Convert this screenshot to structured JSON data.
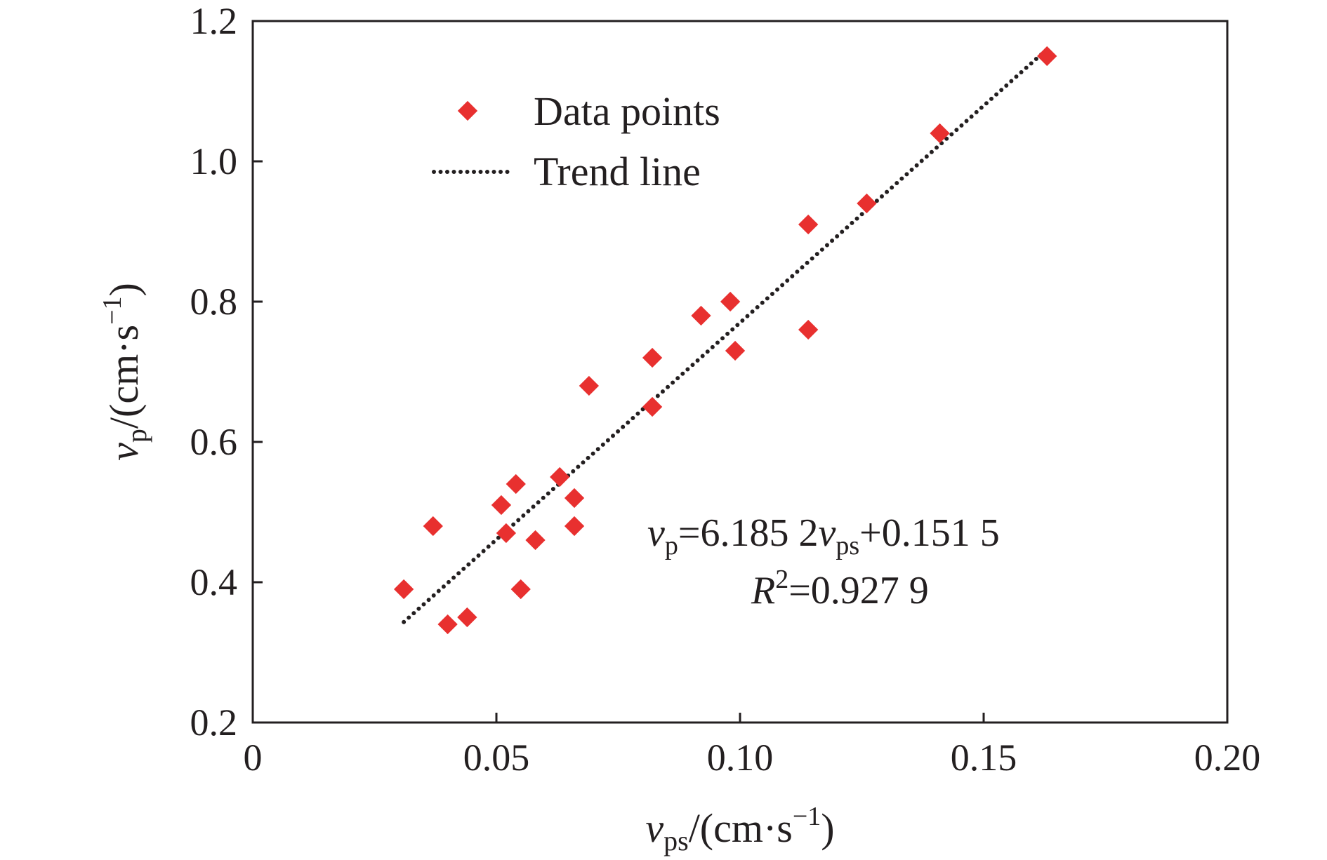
{
  "colors": {
    "marker": "#e8302f",
    "trend": "#231f20",
    "axis": "#231f20"
  },
  "chart_data": {
    "type": "scatter",
    "xlim": [
      0,
      0.2
    ],
    "ylim": [
      0.2,
      1.2
    ],
    "x_ticks": [
      "0",
      "0.05",
      "0.10",
      "0.15",
      "0.20"
    ],
    "y_ticks": [
      "0.2",
      "0.4",
      "0.6",
      "0.8",
      "1.0",
      "1.2"
    ],
    "xlabel": {
      "var": "v",
      "sub": "ps",
      "unit": "/(cm·s",
      "sup": "−1",
      "close": ")"
    },
    "ylabel": {
      "var": "v",
      "sub": "p",
      "unit": "/(cm·s",
      "sup": "−1",
      "close": ")"
    },
    "legend": {
      "placement": "top-left",
      "points_label": "Data points",
      "trend_label": "Trend line"
    },
    "series": [
      {
        "name": "Data points",
        "marker": "diamond",
        "points": [
          [
            0.031,
            0.39
          ],
          [
            0.037,
            0.48
          ],
          [
            0.04,
            0.34
          ],
          [
            0.044,
            0.35
          ],
          [
            0.051,
            0.51
          ],
          [
            0.052,
            0.47
          ],
          [
            0.054,
            0.54
          ],
          [
            0.055,
            0.39
          ],
          [
            0.058,
            0.46
          ],
          [
            0.063,
            0.55
          ],
          [
            0.066,
            0.48
          ],
          [
            0.066,
            0.52
          ],
          [
            0.069,
            0.68
          ],
          [
            0.082,
            0.72
          ],
          [
            0.082,
            0.65
          ],
          [
            0.092,
            0.78
          ],
          [
            0.098,
            0.8
          ],
          [
            0.099,
            0.73
          ],
          [
            0.114,
            0.91
          ],
          [
            0.114,
            0.76
          ],
          [
            0.126,
            0.94
          ],
          [
            0.141,
            1.04
          ],
          [
            0.163,
            1.15
          ]
        ]
      },
      {
        "name": "Trend line",
        "type": "line",
        "slope": 6.1852,
        "intercept": 0.1515,
        "x_range": [
          0.031,
          0.163
        ]
      }
    ],
    "annotation": {
      "eq_var": "v",
      "eq_sub": "p",
      "eq_mid": "=6.185 2",
      "eq_var2": "v",
      "eq_sub2": "ps",
      "eq_end": "+0.151 5",
      "r2_var": "R",
      "r2_sup": "2",
      "r2_val": "=0.927 9"
    }
  }
}
